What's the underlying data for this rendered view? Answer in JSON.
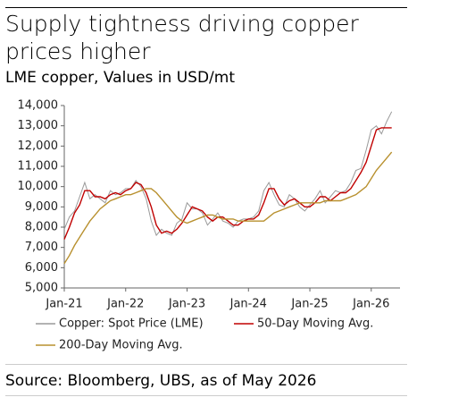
{
  "chart_data": {
    "type": "line",
    "title": "Supply tightness driving copper prices higher",
    "subtitle": "LME copper, Values in USD/mt",
    "source": "Source: Bloomberg, UBS, as of May 2026",
    "categories": [
      "Jan-21",
      null,
      null,
      null,
      null,
      null,
      null,
      null,
      null,
      null,
      null,
      null,
      "Jan-22",
      null,
      null,
      null,
      null,
      null,
      null,
      null,
      null,
      null,
      null,
      null,
      "Jan-23",
      null,
      null,
      null,
      null,
      null,
      null,
      null,
      null,
      null,
      null,
      null,
      "Jan-24",
      null,
      null,
      null,
      null,
      null,
      null,
      null,
      null,
      null,
      null,
      null,
      "Jan-25",
      null,
      null,
      null,
      null,
      null,
      null,
      null,
      null,
      null,
      null,
      null,
      "Jan-26",
      null,
      null,
      null,
      null
    ],
    "series": [
      {
        "name": "Copper: Spot Price (LME)",
        "color": "#9a9a9a",
        "values": [
          7900,
          8500,
          8800,
          9500,
          10200,
          9400,
          9600,
          9400,
          9200,
          9800,
          9600,
          9700,
          9900,
          9900,
          10300,
          10000,
          9400,
          8300,
          7600,
          7900,
          7700,
          7600,
          8200,
          8400,
          9200,
          8900,
          8900,
          8700,
          8100,
          8400,
          8700,
          8300,
          8200,
          8000,
          8300,
          8400,
          8400,
          8500,
          8800,
          9800,
          10200,
          9600,
          9100,
          9000,
          9600,
          9400,
          9000,
          8800,
          9100,
          9400,
          9800,
          9200,
          9500,
          9800,
          9700,
          9800,
          10200,
          10800,
          10900,
          11800,
          12800,
          13000,
          12600,
          13200,
          13700
        ]
      },
      {
        "name": "50-Day Moving Avg.",
        "color": "#c00000",
        "values": [
          7400,
          8000,
          8700,
          9100,
          9800,
          9800,
          9500,
          9500,
          9400,
          9600,
          9700,
          9600,
          9800,
          9900,
          10200,
          10100,
          9700,
          9000,
          8100,
          7700,
          7800,
          7700,
          7900,
          8200,
          8600,
          9000,
          8900,
          8800,
          8500,
          8300,
          8500,
          8500,
          8300,
          8100,
          8100,
          8300,
          8400,
          8400,
          8600,
          9200,
          9900,
          9900,
          9400,
          9100,
          9300,
          9400,
          9200,
          9000,
          9000,
          9200,
          9500,
          9500,
          9300,
          9500,
          9700,
          9700,
          9900,
          10300,
          10700,
          11200,
          12000,
          12800,
          12900,
          12900,
          12900
        ]
      },
      {
        "name": "200-Day Moving Avg.",
        "color": "#b8902e",
        "values": [
          6200,
          6600,
          7100,
          7500,
          7900,
          8300,
          8600,
          8900,
          9100,
          9300,
          9400,
          9500,
          9600,
          9600,
          9700,
          9800,
          9900,
          9900,
          9700,
          9400,
          9100,
          8800,
          8500,
          8300,
          8200,
          8300,
          8400,
          8500,
          8600,
          8600,
          8500,
          8400,
          8400,
          8400,
          8300,
          8300,
          8300,
          8300,
          8300,
          8300,
          8500,
          8700,
          8800,
          8900,
          9000,
          9100,
          9200,
          9200,
          9200,
          9200,
          9200,
          9300,
          9300,
          9300,
          9300,
          9400,
          9500,
          9600,
          9800,
          10000,
          10400,
          10800,
          11100,
          11400,
          11700
        ]
      }
    ],
    "ylim": [
      5000,
      14000
    ],
    "yticks": [
      {
        "value": 5000,
        "label": "5,000"
      },
      {
        "value": 6000,
        "label": "6,000"
      },
      {
        "value": 7000,
        "label": "7,000"
      },
      {
        "value": 8000,
        "label": "8,000"
      },
      {
        "value": 9000,
        "label": "9,000"
      },
      {
        "value": 10000,
        "label": "10,000"
      },
      {
        "value": 11000,
        "label": "11,000"
      },
      {
        "value": 12000,
        "label": "12,000"
      },
      {
        "value": 13000,
        "label": "13,000"
      },
      {
        "value": 14000,
        "label": "14,000"
      }
    ],
    "grid": false,
    "legend": "bottom"
  }
}
